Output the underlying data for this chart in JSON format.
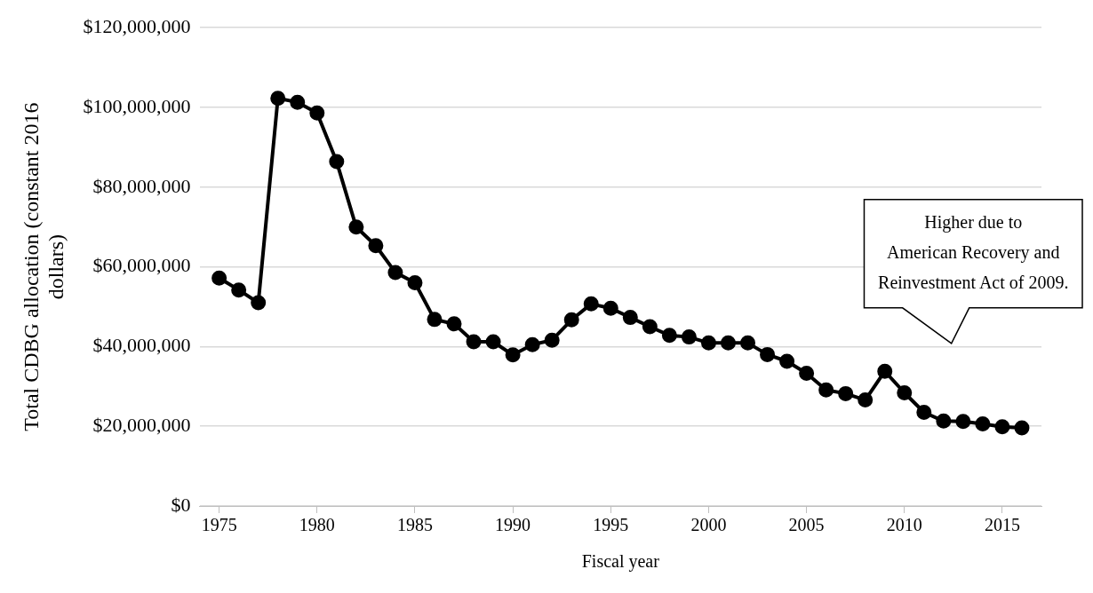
{
  "chart_data": {
    "type": "line",
    "xlabel": "Fiscal year",
    "ylabel": "Total CDBG allocation (constant 2016 dollars)",
    "x": [
      1975,
      1976,
      1977,
      1978,
      1979,
      1980,
      1981,
      1982,
      1983,
      1984,
      1985,
      1986,
      1987,
      1988,
      1989,
      1990,
      1991,
      1992,
      1993,
      1994,
      1995,
      1996,
      1997,
      1998,
      1999,
      2000,
      2001,
      2002,
      2003,
      2004,
      2005,
      2006,
      2007,
      2008,
      2009,
      2010,
      2011,
      2012,
      2013,
      2014,
      2015,
      2016
    ],
    "series": [
      {
        "color": "#000000",
        "values": [
          57200000,
          54200000,
          51000000,
          102300000,
          101300000,
          98600000,
          86400000,
          70000000,
          65300000,
          58600000,
          56000000,
          46800000,
          45700000,
          41200000,
          41200000,
          37900000,
          40500000,
          41600000,
          46700000,
          50700000,
          49600000,
          47300000,
          45000000,
          42800000,
          42400000,
          40900000,
          40900000,
          40900000,
          38000000,
          36300000,
          33300000,
          29100000,
          28200000,
          26600000,
          33800000,
          28400000,
          23500000,
          21300000,
          21200000,
          20600000,
          19900000,
          19600000
        ]
      }
    ],
    "xlim": [
      1974,
      2017
    ],
    "xticks": [
      1975,
      1980,
      1985,
      1990,
      1995,
      2000,
      2005,
      2010,
      2015
    ],
    "ylim": [
      0,
      120000000
    ],
    "yticks": [
      {
        "value": 0,
        "label": "$0"
      },
      {
        "value": 20000000,
        "label": "$20,000,000"
      },
      {
        "value": 40000000,
        "label": "$40,000,000"
      },
      {
        "value": 60000000,
        "label": "$60,000,000"
      },
      {
        "value": 80000000,
        "label": "$80,000,000"
      },
      {
        "value": 100000000,
        "label": "$100,000,000"
      },
      {
        "value": 120000000,
        "label": "$120,000,000"
      }
    ],
    "grid": "y",
    "legend": false,
    "marker": "circle",
    "line_style": "solid",
    "annotations": [
      "Higher due to\nAmerican Recovery and\nReinvestment Act of 2009."
    ]
  }
}
